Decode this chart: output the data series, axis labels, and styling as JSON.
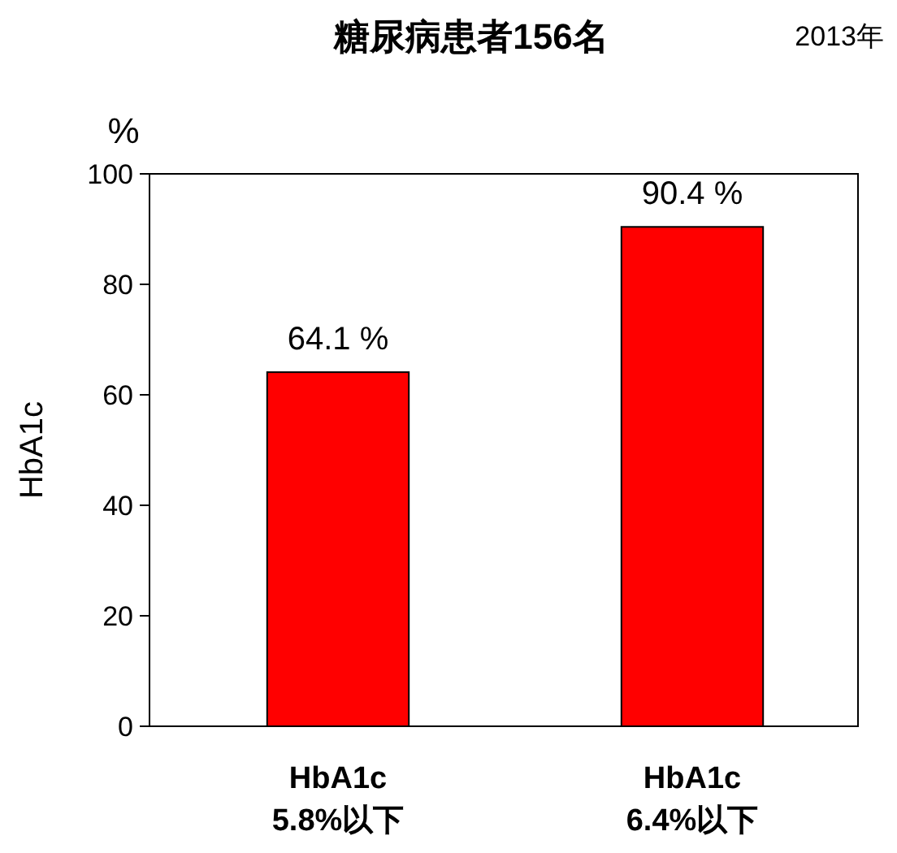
{
  "chart_data": {
    "type": "bar",
    "title": "糖尿病患者156名",
    "ylabel": "HbA1c",
    "annotations": [
      "2013年",
      "%"
    ],
    "categories": [
      "HbA1c\n5.8%以下",
      "HbA1c\n6.4%以下"
    ],
    "values": [
      64.1,
      90.4
    ],
    "value_labels": [
      "64.1 %",
      "90.4 %"
    ],
    "color": "#ff0000",
    "ylim": [
      0,
      100
    ],
    "yticks": [
      0,
      20,
      40,
      60,
      80,
      100
    ]
  }
}
